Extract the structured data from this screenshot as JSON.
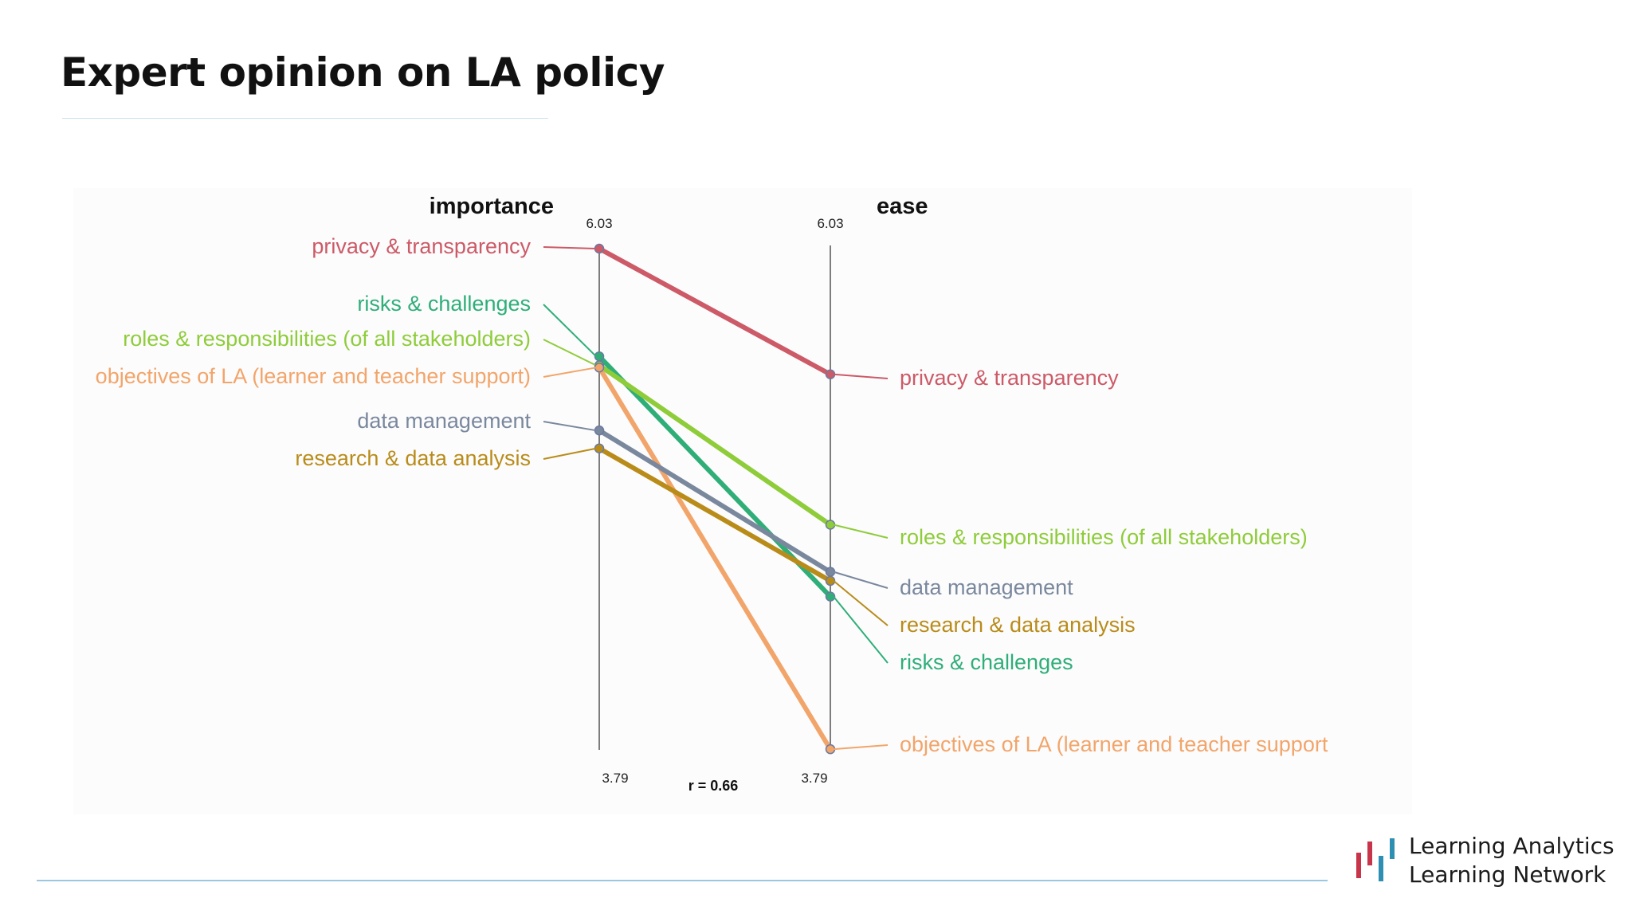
{
  "slide": {
    "title": "Expert opinion on LA policy"
  },
  "logo": {
    "line1": "Learning Analytics",
    "line2": "Learning Network",
    "colors": [
      "#c8354a",
      "#c8354a",
      "#2f8fb3",
      "#2f8fb3"
    ]
  },
  "chart_data": {
    "type": "slope",
    "axes": [
      {
        "name": "importance",
        "max_label": "6.03",
        "min_label": "3.79"
      },
      {
        "name": "ease",
        "max_label": "6.03",
        "min_label": "3.79"
      }
    ],
    "ylim": [
      3.79,
      6.03
    ],
    "annotation": "r = 0.66",
    "series": [
      {
        "name": "privacy & transparency",
        "left_label": "privacy & transparency",
        "right_label": "privacy & transparency",
        "importance": 6.03,
        "ease": 5.47,
        "color": "#cc5a67"
      },
      {
        "name": "risks & challenges",
        "left_label": "risks & challenges",
        "right_label": "risks & challenges",
        "importance": 5.55,
        "ease": 4.48,
        "color": "#2fae78"
      },
      {
        "name": "roles & responsibilities (of all stakeholders)",
        "left_label": "roles & responsibilities (of all stakeholders)",
        "right_label": "roles & responsibilities (of all stakeholders)",
        "importance": 5.51,
        "ease": 4.8,
        "color": "#8fcc3a"
      },
      {
        "name": "objectives of LA (learner and teacher support)",
        "left_label": "objectives of LA (learner and teacher support)",
        "right_label": "objectives of LA (learner and teacher support",
        "importance": 5.5,
        "ease": 3.8,
        "color": "#f2a56a"
      },
      {
        "name": "data management",
        "left_label": "data management",
        "right_label": "data management",
        "importance": 5.22,
        "ease": 4.59,
        "color": "#7a889d"
      },
      {
        "name": "research & data analysis",
        "left_label": "research & data analysis",
        "right_label": "research & data analysis",
        "importance": 5.14,
        "ease": 4.55,
        "color": "#b98c1a"
      }
    ]
  }
}
